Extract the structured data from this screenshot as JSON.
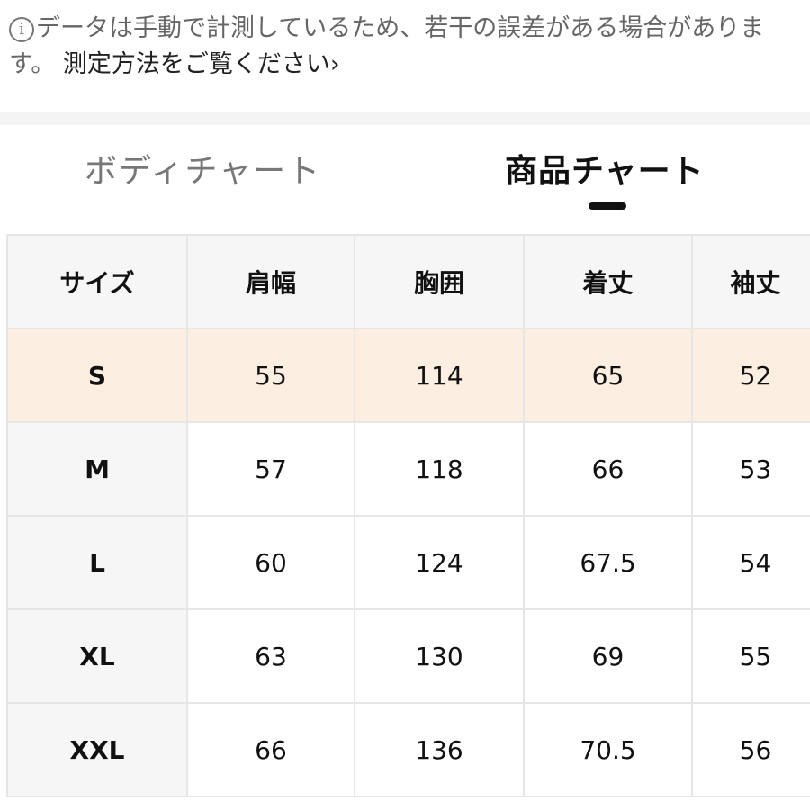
{
  "notice": {
    "icon": "info-icon",
    "text": "データは手動で計測しているため、若干の誤差がある場合がありま す。",
    "link_label": "測定方法をご覧ください",
    "link_chevron": "›"
  },
  "tabs": [
    {
      "label": "ボディチャート",
      "active": false
    },
    {
      "label": "商品チャート",
      "active": true
    }
  ],
  "table": {
    "headers": [
      "サイズ",
      "肩幅",
      "胸囲",
      "着丈",
      "袖丈"
    ],
    "rows": [
      {
        "size": "S",
        "shoulder": "55",
        "chest": "114",
        "length": "65",
        "sleeve": "52",
        "highlighted": true
      },
      {
        "size": "M",
        "shoulder": "57",
        "chest": "118",
        "length": "66",
        "sleeve": "53",
        "highlighted": false
      },
      {
        "size": "L",
        "shoulder": "60",
        "chest": "124",
        "length": "67.5",
        "sleeve": "54",
        "highlighted": false
      },
      {
        "size": "XL",
        "shoulder": "63",
        "chest": "130",
        "length": "69",
        "sleeve": "55",
        "highlighted": false
      },
      {
        "size": "XXL",
        "shoulder": "66",
        "chest": "136",
        "length": "70.5",
        "sleeve": "56",
        "highlighted": false
      }
    ]
  },
  "colors": {
    "highlight_row": "#fdeee2",
    "header_bg": "#f6f6f6",
    "border": "#e6e6e6",
    "active_tab": "#111111",
    "inactive_tab": "#777777"
  }
}
